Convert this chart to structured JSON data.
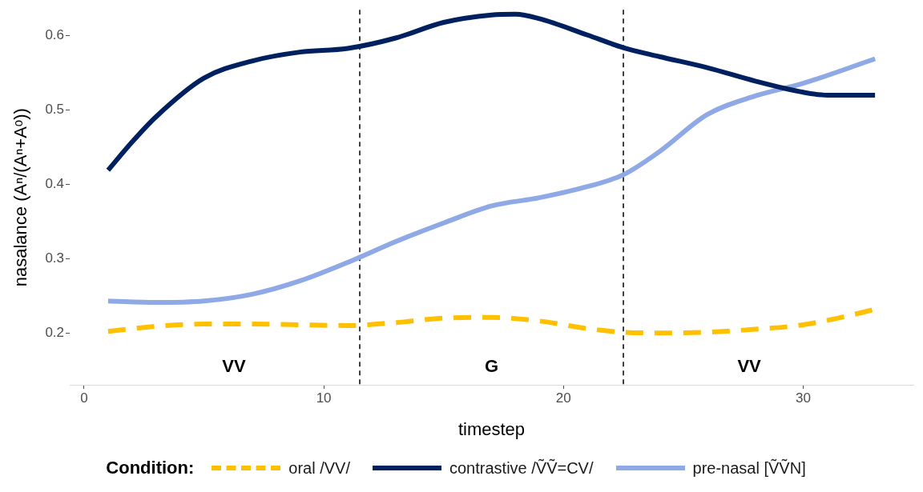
{
  "chart_data": {
    "type": "line",
    "xlabel": "timestep",
    "ylabel": "nasalance (Aⁿ/(Aⁿ+Aᵒ))",
    "legend_title": "Condition:",
    "xlim": [
      -0.6,
      34.6
    ],
    "xticks": [
      0,
      10,
      20,
      30
    ],
    "ylim": [
      0.13,
      0.635
    ],
    "yticks": [
      0.2,
      0.3,
      0.4,
      0.5,
      0.6
    ],
    "grid": false,
    "legend": "bottom",
    "marker": "none",
    "series": [
      {
        "name": "oral /VV/",
        "color": "#ffc000",
        "line_style": "dashed",
        "x": [
          1,
          3,
          5,
          7,
          9,
          11,
          13,
          15,
          17,
          19,
          21,
          22.5,
          24,
          26,
          28,
          30,
          32,
          33
        ],
        "values": [
          0.202,
          0.209,
          0.212,
          0.212,
          0.211,
          0.21,
          0.214,
          0.22,
          0.221,
          0.216,
          0.206,
          0.201,
          0.2,
          0.201,
          0.205,
          0.211,
          0.224,
          0.232
        ]
      },
      {
        "name": "contrastive /ṼṼ=CV/",
        "color": "#002060",
        "line_style": "solid",
        "x": [
          1,
          2,
          3,
          5,
          7,
          9,
          11,
          13,
          15,
          17,
          18,
          19,
          21,
          22.5,
          24,
          26,
          28,
          30,
          31,
          33
        ],
        "values": [
          0.419,
          0.457,
          0.491,
          0.543,
          0.566,
          0.578,
          0.583,
          0.597,
          0.618,
          0.628,
          0.629,
          0.623,
          0.601,
          0.584,
          0.572,
          0.557,
          0.539,
          0.524,
          0.52,
          0.52
        ]
      },
      {
        "name": "pre-nasal [ṼṼN]",
        "color": "#8ea9e6",
        "line_style": "solid",
        "x": [
          1,
          3,
          5,
          7,
          9,
          11,
          13,
          15,
          17,
          19,
          21,
          22.5,
          24,
          26,
          28,
          30,
          33
        ],
        "values": [
          0.243,
          0.241,
          0.243,
          0.252,
          0.27,
          0.295,
          0.323,
          0.348,
          0.371,
          0.382,
          0.397,
          0.413,
          0.444,
          0.494,
          0.519,
          0.536,
          0.569
        ]
      }
    ],
    "ref_lines": [
      {
        "axis": "x",
        "value": 11.5,
        "color": "#000000",
        "line_style": "dashed"
      },
      {
        "axis": "x",
        "value": 22.5,
        "color": "#000000",
        "line_style": "dashed"
      }
    ],
    "annotations": [
      "VV",
      "G",
      "VV"
    ]
  }
}
